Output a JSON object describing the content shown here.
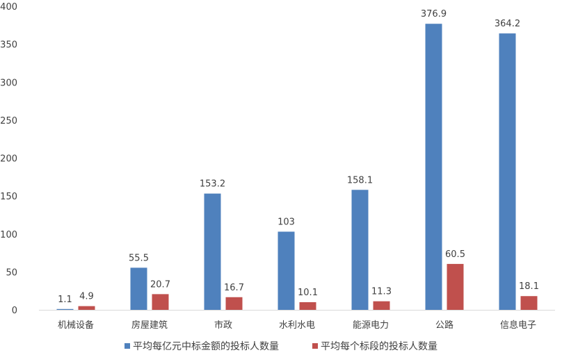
{
  "chart_data": {
    "type": "bar",
    "title": "",
    "xlabel": "",
    "ylabel": "",
    "ylim": [
      0,
      400
    ],
    "yticks": [
      0,
      50,
      100,
      150,
      200,
      250,
      300,
      350,
      400
    ],
    "grid": false,
    "legend_position": "bottom",
    "categories": [
      "机械设备",
      "房屋建筑",
      "市政",
      "水利水电",
      "能源电力",
      "公路",
      "信息电子"
    ],
    "series": [
      {
        "name": "平均每亿元中标金额的投标人数量",
        "color": "#4F81BD",
        "values": [
          1.1,
          55.5,
          153.2,
          103,
          158.1,
          376.9,
          364.2
        ],
        "labels": [
          "1.1",
          "55.5",
          "153.2",
          "103",
          "158.1",
          "376.9",
          "364.2"
        ]
      },
      {
        "name": "平均每个标段的投标人数量",
        "color": "#C0504D",
        "values": [
          4.9,
          20.7,
          16.7,
          10.1,
          11.3,
          60.5,
          18.1
        ],
        "labels": [
          "4.9",
          "20.7",
          "16.7",
          "10.1",
          "11.3",
          "60.5",
          "18.1"
        ]
      }
    ]
  }
}
